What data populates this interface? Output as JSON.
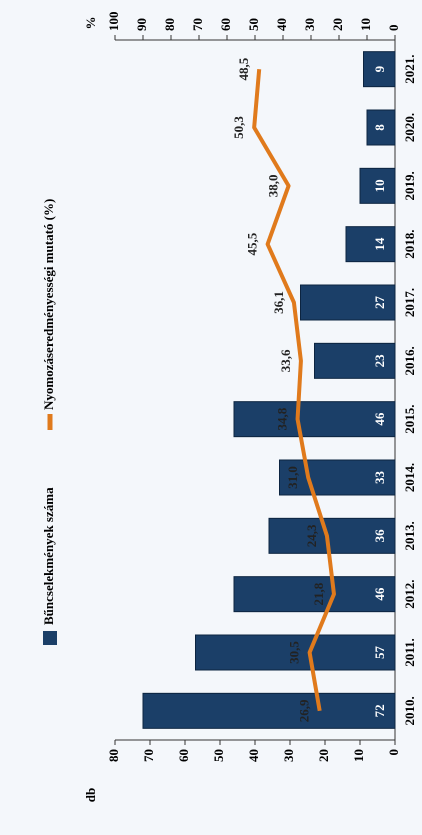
{
  "chart_data": {
    "type": "bar",
    "categories": [
      "2010.",
      "2011.",
      "2012.",
      "2013.",
      "2014.",
      "2015.",
      "2016.",
      "2017.",
      "2018.",
      "2019.",
      "2020.",
      "2021."
    ],
    "y_label": "db",
    "y2_label": "%",
    "ylim": [
      0,
      80
    ],
    "yticks": [
      0,
      10,
      20,
      30,
      40,
      50,
      60,
      70,
      80
    ],
    "y2lim": [
      0,
      100
    ],
    "y2ticks": [
      0,
      10,
      20,
      30,
      40,
      50,
      60,
      70,
      80,
      90,
      100
    ],
    "series": [
      {
        "name": "Bűncselekmények száma",
        "type": "bar",
        "color": "#1b3f68",
        "values": [
          72,
          57,
          46,
          36,
          33,
          46,
          23,
          27,
          14,
          10,
          8,
          9
        ]
      },
      {
        "name": "Nyomozáseredményességi mutató (%)",
        "type": "line",
        "axis": "y2",
        "color": "#e07a1c",
        "values": [
          26.9,
          30.5,
          21.8,
          24.3,
          31.0,
          34.8,
          33.6,
          36.1,
          45.5,
          38.0,
          50.3,
          48.5
        ],
        "value_labels": [
          "26,9",
          "30,5",
          "21,8",
          "24,3",
          "31,0",
          "34,8",
          "33,6",
          "36,1",
          "45,5",
          "38,0",
          "50,3",
          "48,5"
        ]
      }
    ]
  }
}
